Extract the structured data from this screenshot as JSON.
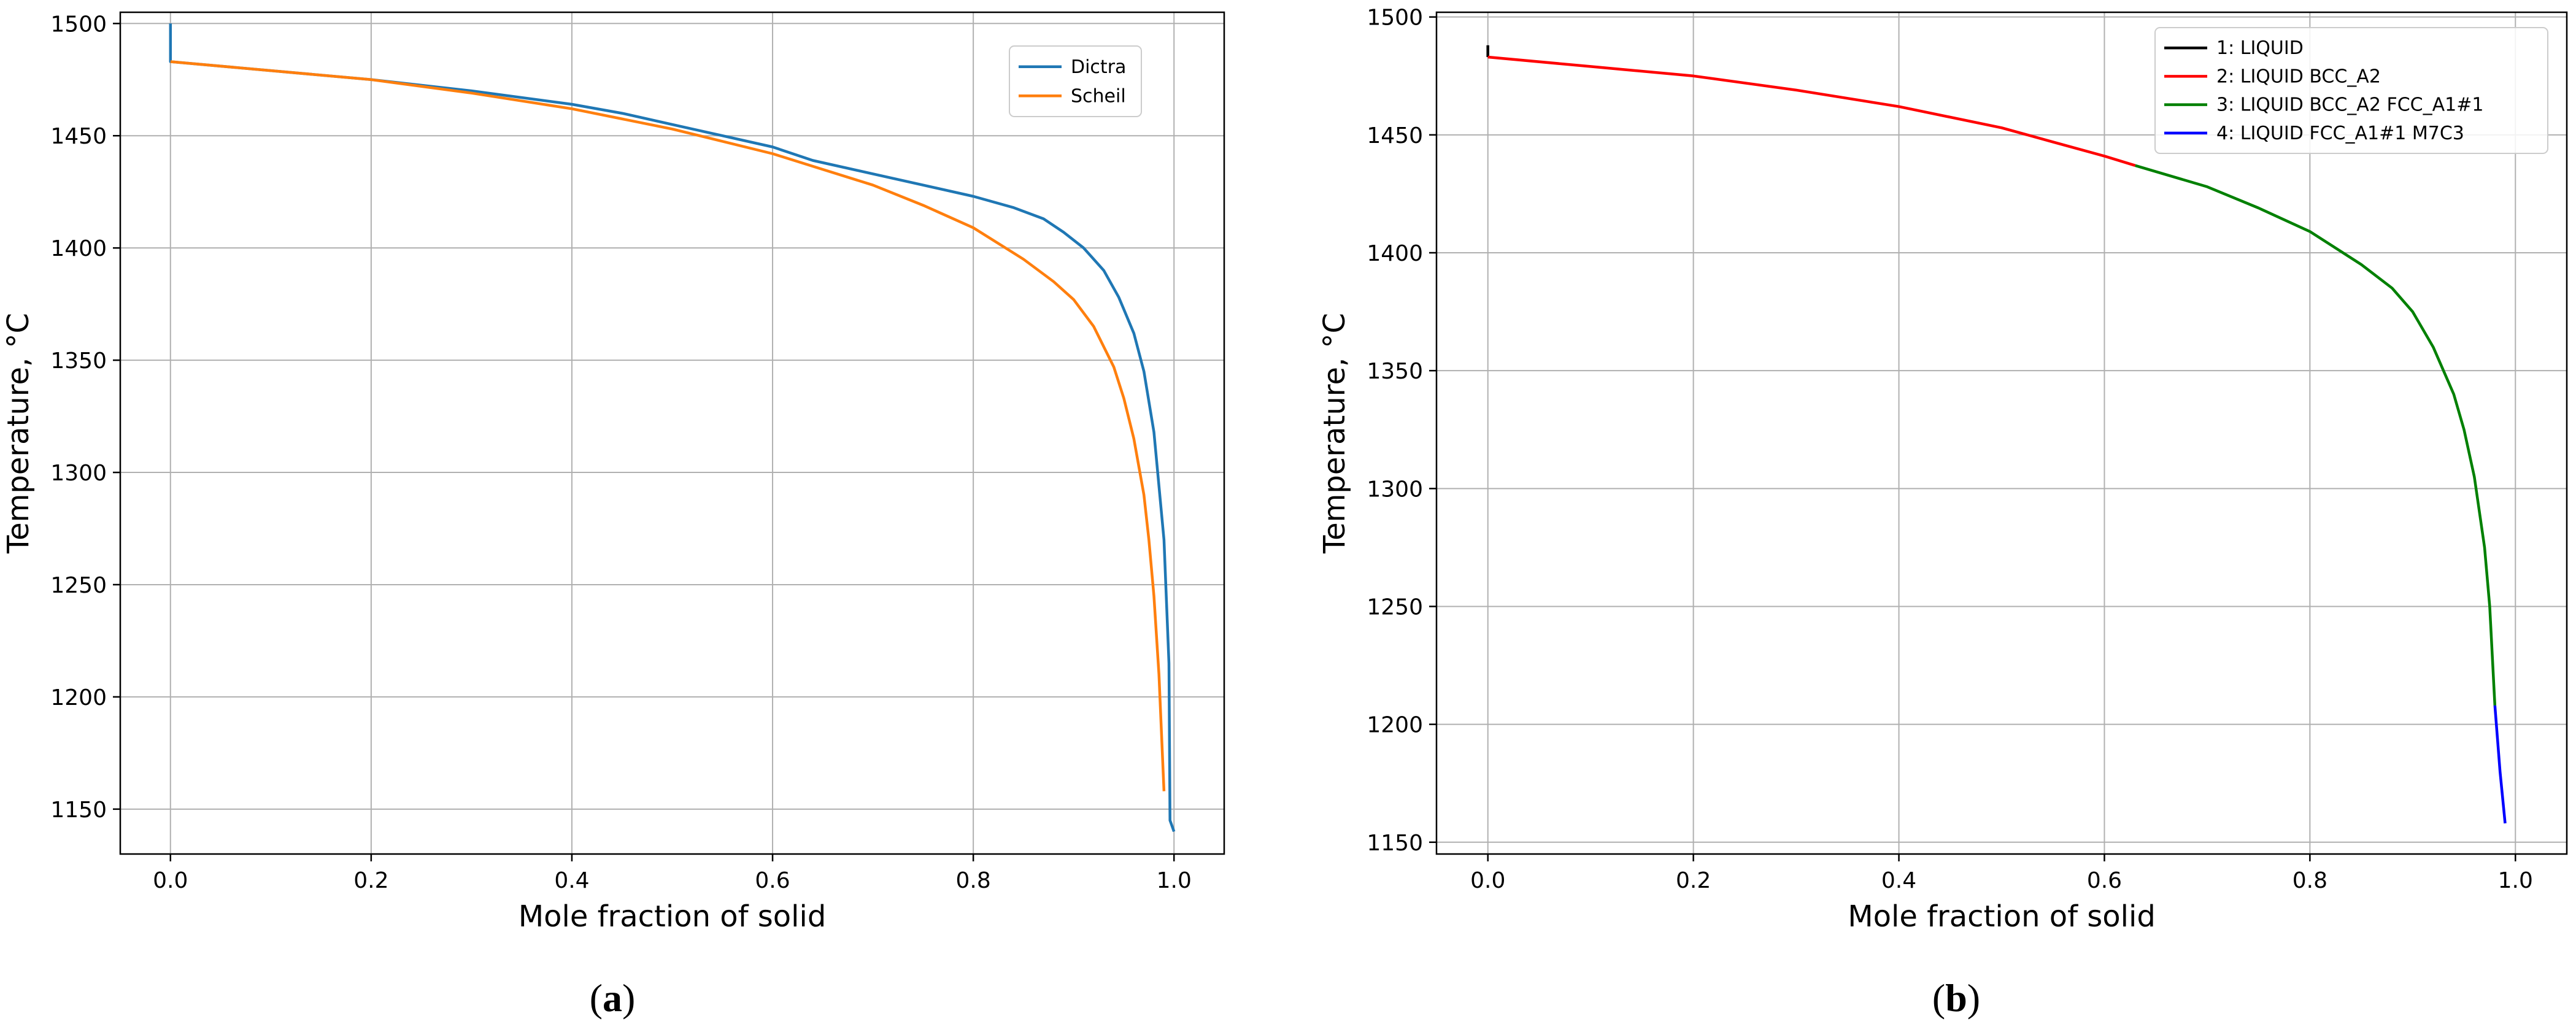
{
  "chart_data": [
    {
      "type": "line",
      "panel_label": "a",
      "xlabel": "Mole fraction of solid",
      "ylabel": "Temperature, °C",
      "xlim": [
        -0.05,
        1.05
      ],
      "ylim": [
        1130,
        1505
      ],
      "xticks": [
        0.0,
        0.2,
        0.4,
        0.6,
        0.8,
        1.0
      ],
      "xtick_labels": [
        "0.0",
        "0.2",
        "0.4",
        "0.6",
        "0.8",
        "1.0"
      ],
      "yticks": [
        1150,
        1200,
        1250,
        1300,
        1350,
        1400,
        1450,
        1500
      ],
      "ytick_labels": [
        "1150",
        "1200",
        "1250",
        "1300",
        "1350",
        "1400",
        "1450",
        "1500"
      ],
      "grid": true,
      "legend": "top-right",
      "series": [
        {
          "name": "Dictra",
          "color": "#1f77b4",
          "points": [
            [
              0.0,
              1500
            ],
            [
              0.0,
              1483
            ],
            [
              0.1,
              1479
            ],
            [
              0.2,
              1475
            ],
            [
              0.3,
              1470
            ],
            [
              0.4,
              1464
            ],
            [
              0.45,
              1460
            ],
            [
              0.5,
              1455
            ],
            [
              0.55,
              1450
            ],
            [
              0.6,
              1445
            ],
            [
              0.64,
              1439
            ],
            [
              0.7,
              1433
            ],
            [
              0.75,
              1428
            ],
            [
              0.8,
              1423
            ],
            [
              0.84,
              1418
            ],
            [
              0.87,
              1413
            ],
            [
              0.89,
              1407
            ],
            [
              0.91,
              1400
            ],
            [
              0.93,
              1390
            ],
            [
              0.945,
              1378
            ],
            [
              0.96,
              1362
            ],
            [
              0.97,
              1345
            ],
            [
              0.98,
              1318
            ],
            [
              0.99,
              1270
            ],
            [
              0.995,
              1215
            ],
            [
              0.996,
              1145
            ],
            [
              1.0,
              1140
            ]
          ]
        },
        {
          "name": "Scheil",
          "color": "#ff7f0e",
          "points": [
            [
              0.0,
              1483
            ],
            [
              0.1,
              1479
            ],
            [
              0.2,
              1475
            ],
            [
              0.3,
              1469
            ],
            [
              0.4,
              1462
            ],
            [
              0.5,
              1453
            ],
            [
              0.6,
              1442
            ],
            [
              0.65,
              1435
            ],
            [
              0.7,
              1428
            ],
            [
              0.75,
              1419
            ],
            [
              0.8,
              1409
            ],
            [
              0.85,
              1395
            ],
            [
              0.88,
              1385
            ],
            [
              0.9,
              1377
            ],
            [
              0.92,
              1365
            ],
            [
              0.94,
              1347
            ],
            [
              0.95,
              1333
            ],
            [
              0.96,
              1315
            ],
            [
              0.97,
              1290
            ],
            [
              0.975,
              1270
            ],
            [
              0.98,
              1245
            ],
            [
              0.985,
              1210
            ],
            [
              0.99,
              1158
            ]
          ]
        }
      ]
    },
    {
      "type": "line",
      "panel_label": "b",
      "xlabel": "Mole fraction of solid",
      "ylabel": "Temperature, °C",
      "xlim": [
        -0.05,
        1.05
      ],
      "ylim": [
        1145,
        1502
      ],
      "xticks": [
        0.0,
        0.2,
        0.4,
        0.6,
        0.8,
        1.0
      ],
      "xtick_labels": [
        "0.0",
        "0.2",
        "0.4",
        "0.6",
        "0.8",
        "1.0"
      ],
      "yticks": [
        1150,
        1200,
        1250,
        1300,
        1350,
        1400,
        1450,
        1500
      ],
      "ytick_labels": [
        "1150",
        "1200",
        "1250",
        "1300",
        "1350",
        "1400",
        "1450",
        "1500"
      ],
      "grid": true,
      "legend": "top-right",
      "series": [
        {
          "name": "1: LIQUID",
          "color": "#000000",
          "points": [
            [
              0.0,
              1488
            ],
            [
              0.0,
              1483
            ]
          ]
        },
        {
          "name": "2: LIQUID BCC_A2",
          "color": "#ff0000",
          "points": [
            [
              0.0,
              1483
            ],
            [
              0.1,
              1479
            ],
            [
              0.2,
              1475
            ],
            [
              0.3,
              1469
            ],
            [
              0.4,
              1462
            ],
            [
              0.5,
              1453
            ],
            [
              0.55,
              1447
            ],
            [
              0.6,
              1441
            ],
            [
              0.63,
              1437
            ]
          ]
        },
        {
          "name": "3: LIQUID BCC_A2 FCC_A1#1",
          "color": "#008000",
          "points": [
            [
              0.63,
              1437
            ],
            [
              0.7,
              1428
            ],
            [
              0.75,
              1419
            ],
            [
              0.8,
              1409
            ],
            [
              0.85,
              1395
            ],
            [
              0.88,
              1385
            ],
            [
              0.9,
              1375
            ],
            [
              0.92,
              1360
            ],
            [
              0.94,
              1340
            ],
            [
              0.95,
              1325
            ],
            [
              0.96,
              1305
            ],
            [
              0.97,
              1275
            ],
            [
              0.975,
              1250
            ],
            [
              0.98,
              1208
            ]
          ]
        },
        {
          "name": "4: LIQUID FCC_A1#1 M7C3",
          "color": "#0000ff",
          "points": [
            [
              0.98,
              1208
            ],
            [
              0.985,
              1180
            ],
            [
              0.99,
              1158
            ]
          ]
        }
      ]
    }
  ]
}
